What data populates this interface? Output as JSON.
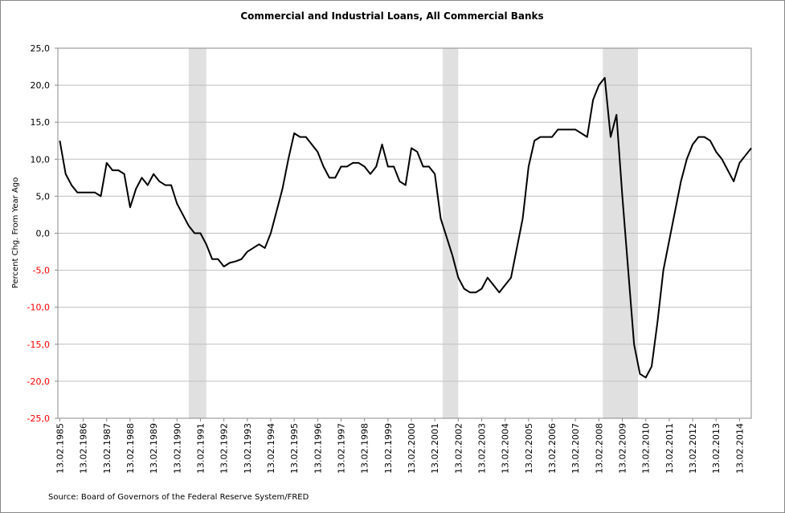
{
  "chart_data": {
    "type": "line",
    "title": "Commercial and Industrial Loans, All Commercial Banks",
    "ylabel": "Percent Chg. From Year Ago",
    "source": "Source: Board of Governors of the Federal Reserve System/FRED",
    "color": "#000000",
    "band_color": "#e0e0e0",
    "negative_label_color": "#ff0000",
    "grid": true,
    "xlim": [
      "13.01.1985",
      "13.08.2014"
    ],
    "ylim": [
      -25,
      25
    ],
    "yticks": [
      {
        "value": -25,
        "label": "-25,0"
      },
      {
        "value": -20,
        "label": "-20,0"
      },
      {
        "value": -15,
        "label": "-15,0"
      },
      {
        "value": -10,
        "label": "-10,0"
      },
      {
        "value": -5,
        "label": "-5,0"
      },
      {
        "value": 0,
        "label": "0,0"
      },
      {
        "value": 5,
        "label": "5,0"
      },
      {
        "value": 10,
        "label": "10,0"
      },
      {
        "value": 15,
        "label": "15,0"
      },
      {
        "value": 20,
        "label": "20,0"
      },
      {
        "value": 25,
        "label": "25,0"
      }
    ],
    "xticks": [
      "13.02.1985",
      "13.02.1986",
      "13.02.1987",
      "13.02.1988",
      "13.02.1989",
      "13.02.1990",
      "13.02.1991",
      "13.02.1992",
      "13.02.1993",
      "13.02.1994",
      "13.02.1995",
      "13.02.1996",
      "13.02.1997",
      "13.02.1998",
      "13.02.1999",
      "13.02.2000",
      "13.02.2001",
      "13.02.2002",
      "13.02.2003",
      "13.02.2004",
      "13.02.2005",
      "13.02.2006",
      "13.02.2007",
      "13.02.2008",
      "13.02.2009",
      "13.02.2010",
      "13.02.2011",
      "13.02.2012",
      "13.02.2013",
      "13.02.2014"
    ],
    "recessions": [
      {
        "start": "13.08.1990",
        "end": "13.05.1991"
      },
      {
        "start": "13.06.2001",
        "end": "13.02.2002"
      },
      {
        "start": "13.04.2008",
        "end": "13.10.2009"
      }
    ],
    "x": [
      "13.02.1985",
      "13.05.1985",
      "13.08.1985",
      "13.11.1985",
      "13.02.1986",
      "13.05.1986",
      "13.08.1986",
      "13.11.1986",
      "13.02.1987",
      "13.05.1987",
      "13.08.1987",
      "13.11.1987",
      "13.02.1988",
      "13.05.1988",
      "13.08.1988",
      "13.11.1988",
      "13.02.1989",
      "13.05.1989",
      "13.08.1989",
      "13.11.1989",
      "13.02.1990",
      "13.05.1990",
      "13.08.1990",
      "13.11.1990",
      "13.02.1991",
      "13.05.1991",
      "13.08.1991",
      "13.11.1991",
      "13.02.1992",
      "13.05.1992",
      "13.08.1992",
      "13.11.1992",
      "13.02.1993",
      "13.05.1993",
      "13.08.1993",
      "13.11.1993",
      "13.02.1994",
      "13.05.1994",
      "13.08.1994",
      "13.11.1994",
      "13.02.1995",
      "13.05.1995",
      "13.08.1995",
      "13.11.1995",
      "13.02.1996",
      "13.05.1996",
      "13.08.1996",
      "13.11.1996",
      "13.02.1997",
      "13.05.1997",
      "13.08.1997",
      "13.11.1997",
      "13.02.1998",
      "13.05.1998",
      "13.08.1998",
      "13.11.1998",
      "13.02.1999",
      "13.05.1999",
      "13.08.1999",
      "13.11.1999",
      "13.02.2000",
      "13.05.2000",
      "13.08.2000",
      "13.11.2000",
      "13.02.2001",
      "13.05.2001",
      "13.08.2001",
      "13.11.2001",
      "13.02.2002",
      "13.05.2002",
      "13.08.2002",
      "13.11.2002",
      "13.02.2003",
      "13.05.2003",
      "13.08.2003",
      "13.11.2003",
      "13.02.2004",
      "13.05.2004",
      "13.08.2004",
      "13.11.2004",
      "13.02.2005",
      "13.05.2005",
      "13.08.2005",
      "13.11.2005",
      "13.02.2006",
      "13.05.2006",
      "13.08.2006",
      "13.11.2006",
      "13.02.2007",
      "13.05.2007",
      "13.08.2007",
      "13.11.2007",
      "13.02.2008",
      "13.05.2008",
      "13.08.2008",
      "13.11.2008",
      "13.02.2009",
      "13.05.2009",
      "13.08.2009",
      "13.11.2009",
      "13.02.2010",
      "13.05.2010",
      "13.08.2010",
      "13.11.2010",
      "13.02.2011",
      "13.05.2011",
      "13.08.2011",
      "13.11.2011",
      "13.02.2012",
      "13.05.2012",
      "13.08.2012",
      "13.11.2012",
      "13.02.2013",
      "13.05.2013",
      "13.08.2013",
      "13.11.2013",
      "13.02.2014",
      "13.05.2014",
      "13.08.2014"
    ],
    "values": [
      12.5,
      8,
      6.5,
      5.5,
      5.5,
      5.5,
      5.5,
      5,
      9.5,
      8.5,
      8.5,
      8,
      3.5,
      6,
      7.5,
      6.5,
      8,
      7,
      6.5,
      6.5,
      4,
      2.5,
      1,
      0,
      0,
      -1.5,
      -3.5,
      -3.5,
      -4.5,
      -4,
      -3.8,
      -3.5,
      -2.5,
      -2,
      -1.5,
      -2,
      0,
      3,
      6,
      10,
      13.5,
      13,
      13,
      12,
      11,
      9,
      7.5,
      7.5,
      9,
      9,
      9.5,
      9.5,
      9,
      8,
      9,
      12,
      9,
      9,
      7,
      6.5,
      11.5,
      11,
      9,
      9,
      8,
      2,
      -0.5,
      -3,
      -6,
      -7.5,
      -8,
      -8,
      -7.5,
      -6,
      -7,
      -8,
      -7,
      -6,
      -2,
      2,
      9,
      12.5,
      13,
      13,
      13,
      14,
      14,
      14,
      14,
      13.5,
      13,
      18,
      20,
      21,
      13,
      16,
      5,
      -5,
      -15,
      -19,
      -19.5,
      -18,
      -12,
      -5,
      -1,
      3,
      7,
      10,
      12,
      13,
      13,
      12.5,
      11,
      10,
      8.5,
      7,
      9.5,
      10.5,
      11.5
    ]
  }
}
